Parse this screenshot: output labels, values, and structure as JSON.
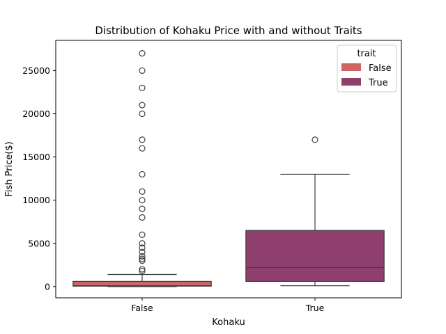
{
  "chart_data": {
    "type": "box",
    "title": "Distribution of Kohaku Price with and without Traits",
    "xlabel": "Kohaku",
    "ylabel": "Fish Price($)",
    "ylim": [
      -1300,
      28500
    ],
    "yticks": [
      0,
      5000,
      10000,
      15000,
      20000,
      25000
    ],
    "ytick_labels": [
      "0",
      "5000",
      "10000",
      "15000",
      "20000",
      "25000"
    ],
    "categories": [
      "False",
      "True"
    ],
    "legend": {
      "title": "trait",
      "placement": "top-right",
      "entries": [
        "False",
        "True"
      ]
    },
    "series": [
      {
        "name": "False",
        "color": "#cc6666",
        "whisker_low": 0,
        "q1": 50,
        "median": 100,
        "q3": 600,
        "whisker_high": 1400,
        "outliers": [
          1800,
          2000,
          3000,
          3200,
          3500,
          4000,
          4500,
          5000,
          6000,
          8000,
          9000,
          10000,
          11000,
          13000,
          16000,
          17000,
          20000,
          21000,
          23000,
          25000,
          27000
        ]
      },
      {
        "name": "True",
        "color": "#8e3f6e",
        "whisker_low": 100,
        "q1": 600,
        "median": 2200,
        "q3": 6500,
        "whisker_high": 13000,
        "outliers": [
          17000
        ]
      }
    ]
  }
}
